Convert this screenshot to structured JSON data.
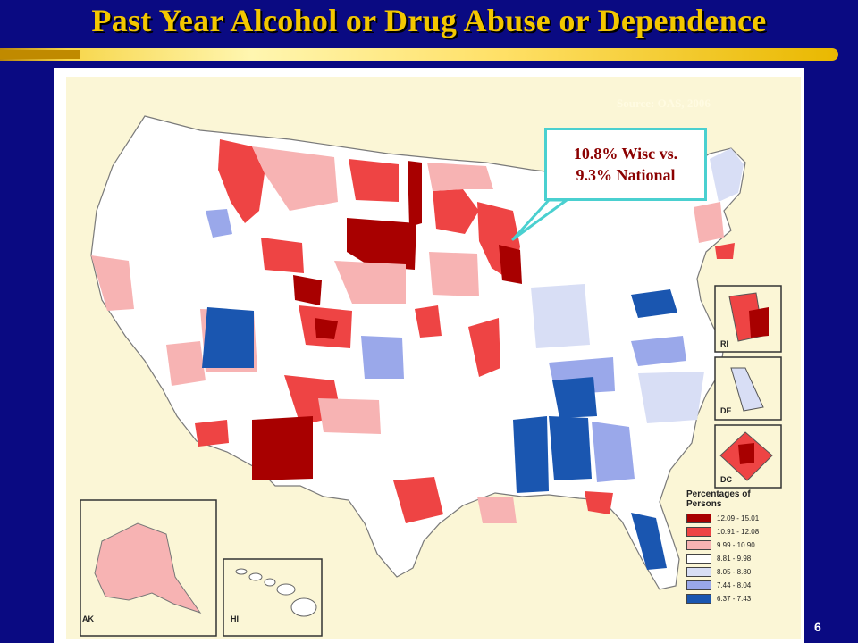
{
  "slide": {
    "title": "Past Year Alcohol or Drug Abuse or Dependence",
    "page_number": "6"
  },
  "map": {
    "source": "Source: OAS, 2006",
    "callout": {
      "line1": "10.8% Wisc vs.",
      "line2": "9.3% National"
    },
    "insets": {
      "ak": "AK",
      "hi": "HI",
      "ri": "RI",
      "de": "DE",
      "dc": "DC"
    },
    "legend": {
      "title_line1": "Percentages of",
      "title_line2": "Persons",
      "items": [
        {
          "label": "12.09 - 15.01",
          "color": "#a80000"
        },
        {
          "label": "10.91 - 12.08",
          "color": "#ee4444"
        },
        {
          "label": "9.99 - 10.90",
          "color": "#f7b3b3"
        },
        {
          "label": "8.81 - 9.98",
          "color": "#ffffff"
        },
        {
          "label": "8.05 - 8.80",
          "color": "#d8def5"
        },
        {
          "label": "7.44 - 8.04",
          "color": "#9aa8ea"
        },
        {
          "label": "6.37 - 7.43",
          "color": "#1a56b0"
        }
      ]
    }
  }
}
